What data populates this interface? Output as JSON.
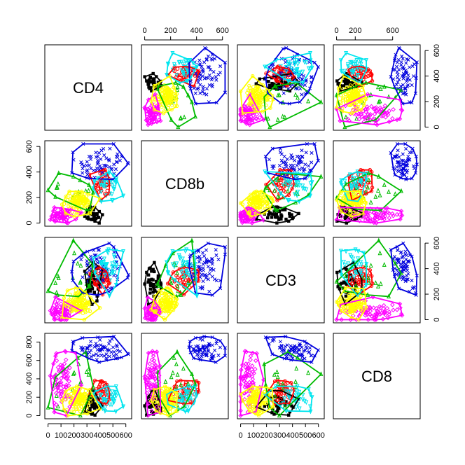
{
  "chart_data": {
    "type": "scatter",
    "title": "",
    "variables": [
      "CD4",
      "CD8b",
      "CD3",
      "CD8"
    ],
    "ranges": {
      "CD4": [
        0,
        620
      ],
      "CD8b": [
        0,
        620
      ],
      "CD3": [
        0,
        620
      ],
      "CD8": [
        0,
        860
      ]
    },
    "axes": {
      "top": [
        {
          "column": 1,
          "ticks": [
            0,
            200,
            400,
            600
          ],
          "labels": [
            "0",
            "200",
            "400",
            "600"
          ]
        },
        {
          "column": 3,
          "ticks": [
            0,
            200,
            600
          ],
          "labels": [
            "0",
            "200",
            "600"
          ]
        }
      ],
      "bottom": [
        {
          "column": 0,
          "ticks": [
            0,
            100,
            200,
            300,
            400,
            500,
            600
          ],
          "labels": [
            "0",
            "100",
            "200",
            "300",
            "400",
            "500",
            "600"
          ]
        },
        {
          "column": 2,
          "ticks": [
            0,
            100,
            200,
            300,
            400,
            500,
            600
          ],
          "labels": [
            "0",
            "100",
            "200",
            "300",
            "400",
            "500",
            "600"
          ]
        }
      ],
      "left": [
        {
          "row": 1,
          "ticks": [
            0,
            200,
            400,
            600
          ],
          "labels": [
            "0",
            "200",
            "400",
            "600"
          ]
        },
        {
          "row": 3,
          "ticks": [
            0,
            200,
            400,
            600,
            800
          ],
          "labels": [
            "0",
            "200",
            "400",
            "600",
            "800"
          ]
        }
      ],
      "right": [
        {
          "row": 0,
          "ticks": [
            0,
            200,
            400,
            600
          ],
          "labels": [
            "0",
            "200",
            "400",
            "600"
          ]
        },
        {
          "row": 2,
          "ticks": [
            0,
            200,
            400,
            600
          ],
          "labels": [
            "0",
            "200",
            "400",
            "600"
          ]
        }
      ]
    },
    "grid": false,
    "legend": "none",
    "clusters": [
      {
        "color": "#000000",
        "marker": "square",
        "n": 40,
        "mean": {
          "CD4": 350,
          "CD8b": 60,
          "CD3": 300,
          "CD8": 130
        },
        "spread": {
          "CD4": 30,
          "CD8b": 35,
          "CD3": 80,
          "CD8": 60
        }
      },
      {
        "color": "#ff0000",
        "marker": "circle",
        "n": 50,
        "mean": {
          "CD4": 420,
          "CD8b": 320,
          "CD3": 320,
          "CD8": 260
        },
        "spread": {
          "CD4": 45,
          "CD8b": 50,
          "CD3": 45,
          "CD8": 70
        }
      },
      {
        "color": "#00bb00",
        "marker": "triangle",
        "n": 20,
        "mean": {
          "CD4": 220,
          "CD8b": 260,
          "CD3": 320,
          "CD8": 330
        },
        "spread": {
          "CD4": 90,
          "CD8b": 80,
          "CD3": 140,
          "CD8": 170
        }
      },
      {
        "color": "#0000dd",
        "marker": "cross",
        "n": 70,
        "mean": {
          "CD4": 410,
          "CD8b": 470,
          "CD3": 400,
          "CD8": 700
        },
        "spread": {
          "CD4": 90,
          "CD8b": 70,
          "CD3": 90,
          "CD8": 70
        }
      },
      {
        "color": "#00e5ee",
        "marker": "triangle-down",
        "n": 40,
        "mean": {
          "CD4": 460,
          "CD8b": 300,
          "CD3": 420,
          "CD8": 170
        },
        "spread": {
          "CD4": 60,
          "CD8b": 60,
          "CD3": 70,
          "CD8": 60
        }
      },
      {
        "color": "#ff00ff",
        "marker": "diamond",
        "n": 80,
        "mean": {
          "CD4": 110,
          "CD8b": 60,
          "CD3": 60,
          "CD8": 400
        },
        "spread": {
          "CD4": 45,
          "CD8b": 30,
          "CD3": 35,
          "CD8": 170
        }
      },
      {
        "color": "#ffff00",
        "marker": "circle",
        "n": 140,
        "mean": {
          "CD4": 230,
          "CD8b": 170,
          "CD3": 130,
          "CD8": 160
        },
        "spread": {
          "CD4": 50,
          "CD8b": 40,
          "CD3": 45,
          "CD8": 65
        }
      }
    ]
  }
}
